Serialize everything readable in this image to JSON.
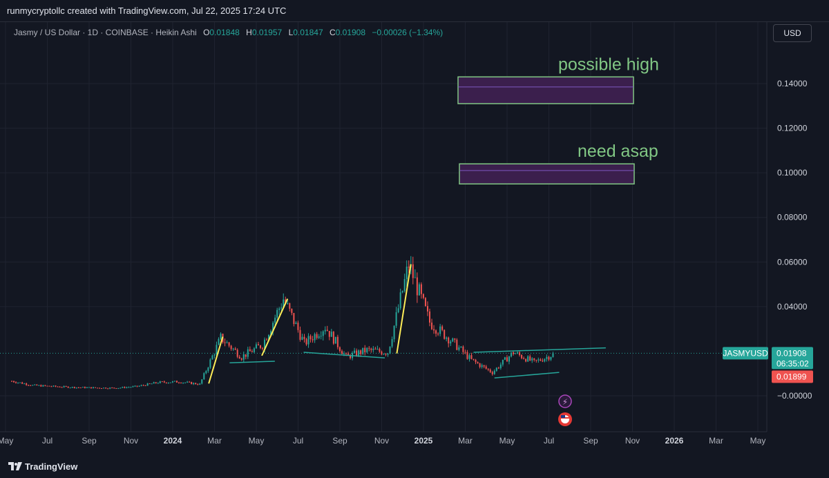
{
  "header": {
    "attribution": "runmycryptollc created with TradingView.com, Jul 22, 2025 17:24 UTC"
  },
  "legend": {
    "symbol": "Jasmy / US Dollar · 1D · COINBASE · Heikin Ashi",
    "o_label": "O",
    "o_value": "0.01848",
    "h_label": "H",
    "h_value": "0.01957",
    "l_label": "L",
    "l_value": "0.01847",
    "c_label": "C",
    "c_value": "0.01908",
    "change": "−0.00026 (−1.34%)"
  },
  "currency_button": "USD",
  "footer": {
    "brand": "TradingView"
  },
  "colors": {
    "up": "#26a69a",
    "down": "#ef5350",
    "trendline_yellow": "#ffee58",
    "trendline_teal": "#26a69a",
    "zone_border": "#81c784",
    "zone_fill": "#3b1f4d"
  },
  "chart_data": {
    "type": "candlestick",
    "title": "Jasmy / US Dollar · 1D · COINBASE · Heikin Ashi",
    "y_ticks": [
      "0.14000",
      "0.12000",
      "0.10000",
      "0.08000",
      "0.06000",
      "0.04000",
      "−0.00000"
    ],
    "ylim": [
      -0.002,
      0.15
    ],
    "x_ticks": [
      "May",
      "Jul",
      "Sep",
      "Nov",
      "2024",
      "Mar",
      "May",
      "Jul",
      "Sep",
      "Nov",
      "2025",
      "Mar",
      "May",
      "Jul",
      "Sep",
      "Nov",
      "2026",
      "Mar",
      "May"
    ],
    "bold_x_ticks": [
      "2024",
      "2025",
      "2026"
    ],
    "x_range": [
      "2023-05",
      "2026-05"
    ],
    "price_series": [
      {
        "date": "2023-05",
        "price": 0.0066
      },
      {
        "date": "2023-06",
        "price": 0.0047
      },
      {
        "date": "2023-07",
        "price": 0.0042
      },
      {
        "date": "2023-08",
        "price": 0.0038
      },
      {
        "date": "2023-09",
        "price": 0.0036
      },
      {
        "date": "2023-10",
        "price": 0.0035
      },
      {
        "date": "2023-11",
        "price": 0.0042
      },
      {
        "date": "2023-12",
        "price": 0.006
      },
      {
        "date": "2024-01",
        "price": 0.0063
      },
      {
        "date": "2024-02",
        "price": 0.0052
      },
      {
        "date": "2024-03",
        "price": 0.026
      },
      {
        "date": "2024-04",
        "price": 0.0175
      },
      {
        "date": "2024-05",
        "price": 0.023
      },
      {
        "date": "2024-06",
        "price": 0.0435
      },
      {
        "date": "2024-07",
        "price": 0.0235
      },
      {
        "date": "2024-08",
        "price": 0.031
      },
      {
        "date": "2024-09",
        "price": 0.0175
      },
      {
        "date": "2024-10",
        "price": 0.0205
      },
      {
        "date": "2024-11",
        "price": 0.0195
      },
      {
        "date": "2024-12",
        "price": 0.059
      },
      {
        "date": "2025-01",
        "price": 0.033
      },
      {
        "date": "2025-02",
        "price": 0.025
      },
      {
        "date": "2025-03",
        "price": 0.016
      },
      {
        "date": "2025-04",
        "price": 0.0105
      },
      {
        "date": "2025-05",
        "price": 0.0195
      },
      {
        "date": "2025-06",
        "price": 0.015
      },
      {
        "date": "2025-07",
        "price": 0.019
      }
    ],
    "last_price": {
      "symbol": "JASMYUSD",
      "value": "0.01908",
      "countdown": "06:35:02",
      "prev_close": "0.01899"
    },
    "annotations": [
      {
        "text": "possible high",
        "zone_low": 0.131,
        "zone_high": 0.143,
        "midline": 0.1385
      },
      {
        "text": "need asap",
        "zone_low": 0.095,
        "zone_high": 0.104,
        "midline": 0.101
      }
    ],
    "yellow_lines": [
      [
        [
          "2024-02-15",
          0.0055
        ],
        [
          "2024-03-05",
          0.0265
        ]
      ],
      [
        [
          "2024-05-01",
          0.018
        ],
        [
          "2024-06-08",
          0.0435
        ]
      ],
      [
        [
          "2024-11-15",
          0.019
        ],
        [
          "2024-12-05",
          0.059
        ]
      ]
    ],
    "teal_lines": [
      [
        [
          "2024-03-15",
          0.0148
        ],
        [
          "2024-05-20",
          0.0155
        ]
      ],
      [
        [
          "2024-07-01",
          0.0195
        ],
        [
          "2024-10-28",
          0.017
        ]
      ],
      [
        [
          "2025-03-05",
          0.0195
        ],
        [
          "2025-09-15",
          0.0215
        ]
      ],
      [
        [
          "2025-04-05",
          0.008
        ],
        [
          "2025-07-08",
          0.0105
        ]
      ]
    ]
  }
}
